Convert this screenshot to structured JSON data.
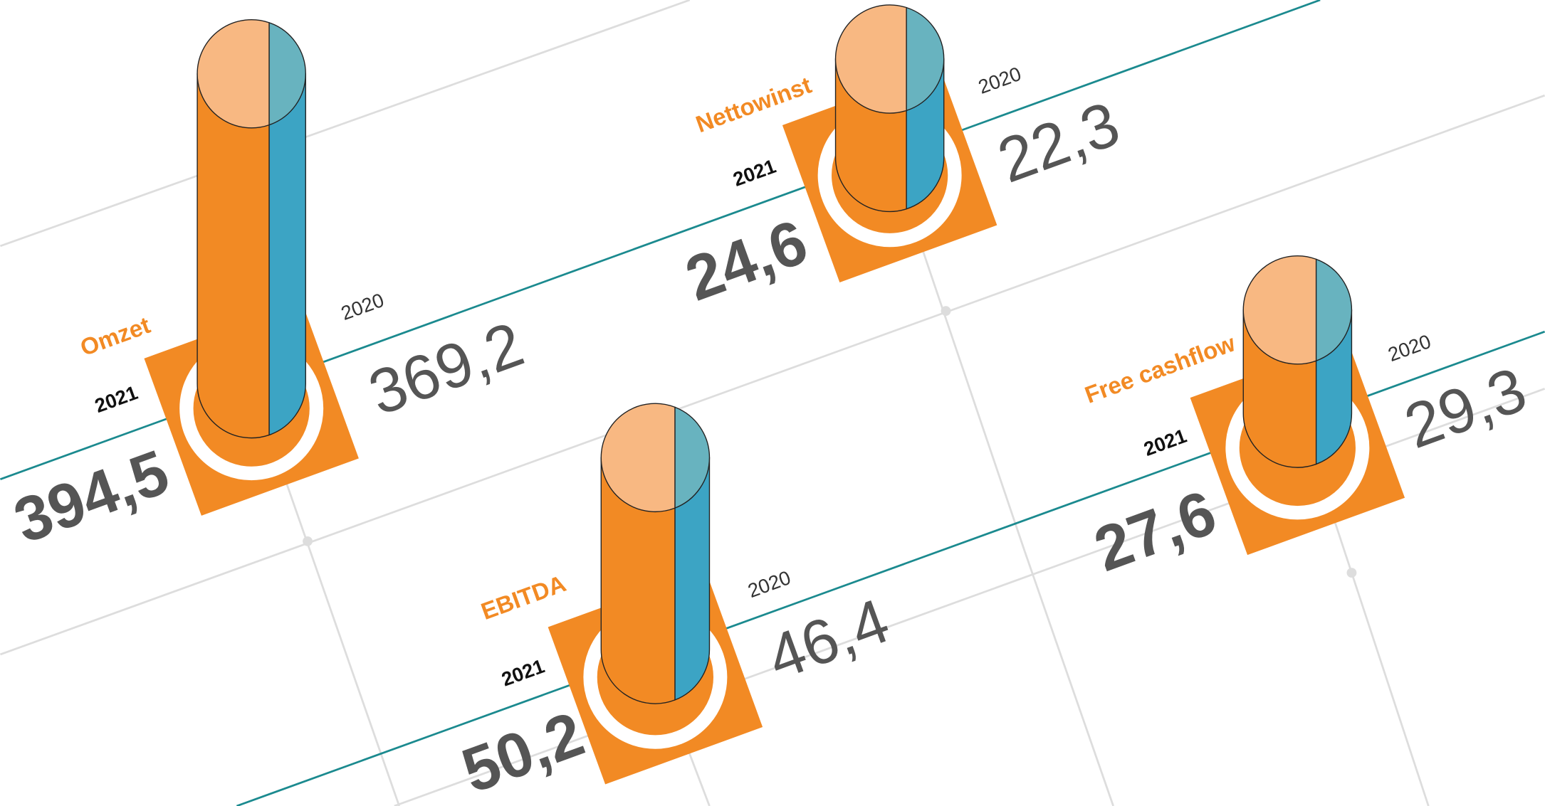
{
  "items": [
    {
      "label": "Omzet",
      "year_current": "2021",
      "value_current": "394,5",
      "year_previous": "2020",
      "value_previous": "369,2"
    },
    {
      "label": "Nettowinst",
      "year_current": "2021",
      "value_current": "24,6",
      "year_previous": "2020",
      "value_previous": "22,3"
    },
    {
      "label": "EBITDA",
      "year_current": "2021",
      "value_current": "50,2",
      "year_previous": "2020",
      "value_previous": "46,4"
    },
    {
      "label": "Free cashflow",
      "year_current": "2021",
      "value_current": "27,6",
      "year_previous": "2020",
      "value_previous": "29,3"
    }
  ]
}
